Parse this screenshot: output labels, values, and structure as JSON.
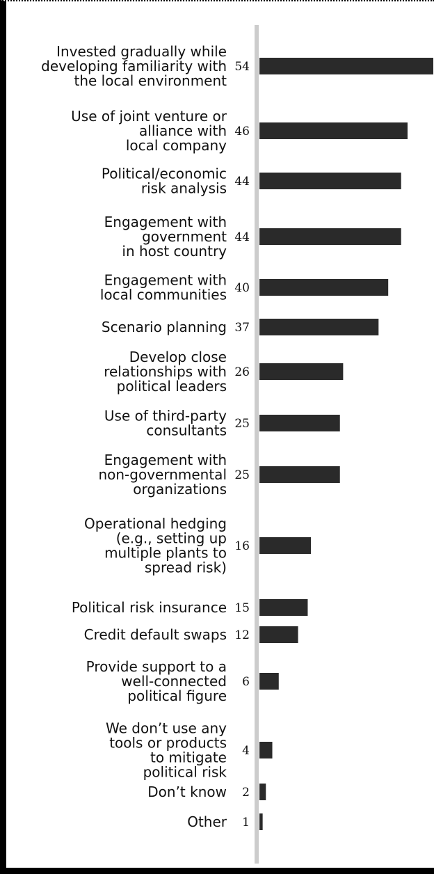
{
  "chart_data": {
    "type": "bar",
    "orientation": "horizontal",
    "title": "",
    "xlabel": "",
    "ylabel": "",
    "xlim": [
      0,
      54
    ],
    "grid": false,
    "legend": "none",
    "bar_color": "#2a2a2a",
    "axis_color": "#cccccc",
    "categories": [
      [
        "Invested gradually while",
        "developing familiarity with",
        "the local environment"
      ],
      [
        "Use of joint venture or",
        "alliance with",
        "local company"
      ],
      [
        "Political/economic",
        "risk analysis"
      ],
      [
        "Engagement with",
        "government",
        "in host country"
      ],
      [
        "Engagement with",
        "local communities"
      ],
      [
        "Scenario planning"
      ],
      [
        "Develop close",
        "relationships with",
        "political leaders"
      ],
      [
        "Use of third-party",
        "consultants"
      ],
      [
        "Engagement with",
        "non-governmental",
        "organizations"
      ],
      [
        "Operational hedging",
        "(e.g., setting up",
        "multiple plants to",
        "spread risk)"
      ],
      [
        "Political risk insurance"
      ],
      [
        "Credit default swaps"
      ],
      [
        "Provide support to a",
        "well-connected",
        "political figure"
      ],
      [
        "We don’t use any",
        "tools or products",
        "to mitigate",
        "political risk"
      ],
      [
        "Don’t know"
      ],
      [
        "Other"
      ]
    ],
    "values": [
      54,
      46,
      44,
      44,
      40,
      37,
      26,
      25,
      25,
      16,
      15,
      12,
      6,
      4,
      2,
      1
    ]
  }
}
